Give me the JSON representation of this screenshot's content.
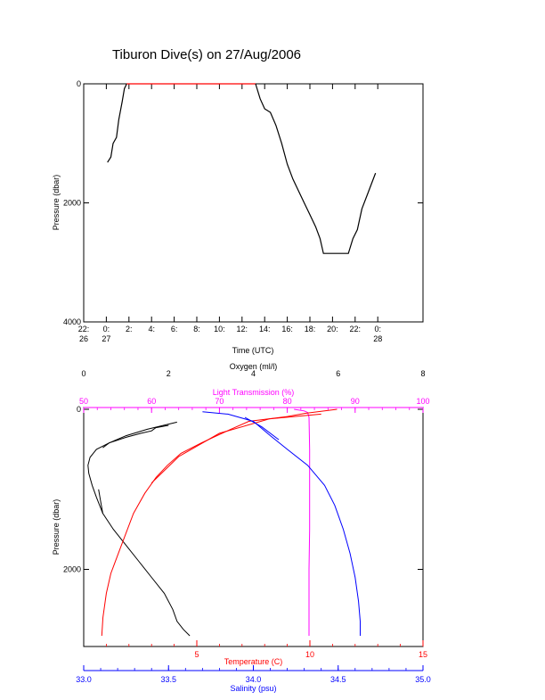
{
  "title": "Tiburon Dive(s) on 27/Aug/2006",
  "chart_data": [
    {
      "type": "line",
      "xlabel": "Time (UTC)",
      "ylabel": "Pressure (dbar)",
      "xlim": [
        -2,
        28
      ],
      "ylim": [
        4000,
        0
      ],
      "yticks": [
        0,
        2000,
        4000
      ],
      "xticks": [
        {
          "v": -2,
          "l1": "22:",
          "l2": "26"
        },
        {
          "v": 0,
          "l1": "0:",
          "l2": "27"
        },
        {
          "v": 2,
          "l1": "2:",
          "l2": ""
        },
        {
          "v": 4,
          "l1": "4:",
          "l2": ""
        },
        {
          "v": 6,
          "l1": "6:",
          "l2": ""
        },
        {
          "v": 8,
          "l1": "8:",
          "l2": ""
        },
        {
          "v": 10,
          "l1": "10:",
          "l2": ""
        },
        {
          "v": 12,
          "l1": "12:",
          "l2": ""
        },
        {
          "v": 14,
          "l1": "14:",
          "l2": ""
        },
        {
          "v": 16,
          "l1": "16:",
          "l2": ""
        },
        {
          "v": 18,
          "l1": "18:",
          "l2": ""
        },
        {
          "v": 20,
          "l1": "20:",
          "l2": ""
        },
        {
          "v": 22,
          "l1": "22:",
          "l2": ""
        },
        {
          "v": 24,
          "l1": "0:",
          "l2": "28"
        }
      ],
      "series": [
        {
          "color": "#000000",
          "points": [
            [
              0.1,
              1320
            ],
            [
              0.4,
              1230
            ],
            [
              0.6,
              1000
            ],
            [
              0.9,
              900
            ],
            [
              1.1,
              600
            ],
            [
              1.4,
              300
            ],
            [
              1.6,
              80
            ],
            [
              1.8,
              0
            ]
          ]
        },
        {
          "color": "#ff0000",
          "points": [
            [
              1.8,
              0
            ],
            [
              13.2,
              0
            ]
          ]
        },
        {
          "color": "#000000",
          "points": [
            [
              13.2,
              0
            ],
            [
              13.6,
              250
            ],
            [
              14.0,
              420
            ],
            [
              14.5,
              480
            ],
            [
              15.0,
              700
            ],
            [
              15.5,
              1000
            ],
            [
              16.0,
              1350
            ],
            [
              16.5,
              1600
            ],
            [
              17.0,
              1800
            ],
            [
              17.5,
              2000
            ],
            [
              18.0,
              2200
            ],
            [
              18.5,
              2400
            ],
            [
              18.9,
              2600
            ],
            [
              19.2,
              2850
            ],
            [
              21.0,
              2850
            ],
            [
              21.4,
              2850
            ],
            [
              21.8,
              2600
            ],
            [
              22.2,
              2450
            ],
            [
              22.6,
              2100
            ],
            [
              23.1,
              1850
            ],
            [
              23.4,
              1700
            ],
            [
              23.8,
              1500
            ]
          ]
        }
      ]
    },
    {
      "type": "line",
      "ylabel": "Pressure (dbar)",
      "ylim": [
        2900,
        0
      ],
      "yticks": [
        0,
        2000
      ],
      "axes": [
        {
          "key": "oxygen",
          "label": "Oxygen (ml/l)",
          "color": "#000000",
          "range": [
            0,
            8
          ],
          "ticks": [
            0,
            2,
            4,
            6,
            8
          ],
          "position": "top"
        },
        {
          "key": "transmission",
          "label": "Light Transmission (%)",
          "color": "#ff00ff",
          "range": [
            50,
            100
          ],
          "ticks": [
            50,
            60,
            70,
            80,
            90,
            100
          ],
          "position": "top"
        },
        {
          "key": "temperature",
          "label": "Temperature (C)",
          "color": "#ff0000",
          "range": [
            0,
            15
          ],
          "ticks": [
            5,
            10,
            15
          ],
          "position": "bottom"
        },
        {
          "key": "salinity",
          "label": "Salinity (psu)",
          "color": "#0000ff",
          "range": [
            33.0,
            35.0
          ],
          "ticks": [
            33.0,
            33.5,
            34.0,
            34.5,
            35.0
          ],
          "position": "bottom"
        }
      ],
      "series": [
        {
          "axis": "oxygen",
          "color": "#000000",
          "points": [
            [
              2.0,
              200
            ],
            [
              1.7,
              230
            ],
            [
              1.6,
              270
            ],
            [
              1.35,
              300
            ],
            [
              1.0,
              350
            ],
            [
              0.6,
              420
            ],
            [
              0.3,
              500
            ],
            [
              0.15,
              600
            ],
            [
              0.1,
              700
            ],
            [
              0.12,
              800
            ],
            [
              0.2,
              950
            ],
            [
              0.3,
              1100
            ],
            [
              0.45,
              1300
            ],
            [
              0.7,
              1500
            ],
            [
              1.0,
              1700
            ],
            [
              1.3,
              1900
            ],
            [
              1.6,
              2100
            ],
            [
              1.9,
              2300
            ],
            [
              2.1,
              2500
            ],
            [
              2.2,
              2650
            ],
            [
              2.35,
              2750
            ],
            [
              2.5,
              2830
            ]
          ]
        },
        {
          "axis": "oxygen",
          "color": "#000000",
          "points": [
            [
              2.2,
              160
            ],
            [
              1.5,
              250
            ],
            [
              1.0,
              330
            ],
            [
              0.6,
              420
            ],
            [
              0.45,
              480
            ]
          ]
        },
        {
          "axis": "oxygen",
          "color": "#000000",
          "points": [
            [
              0.35,
              1000
            ],
            [
              0.4,
              1150
            ],
            [
              0.45,
              1300
            ]
          ]
        },
        {
          "axis": "transmission",
          "color": "#ff00ff",
          "points": [
            [
              81,
              0
            ],
            [
              82.5,
              20
            ],
            [
              83,
              40
            ],
            [
              83.2,
              100
            ],
            [
              83.3,
              500
            ],
            [
              83.3,
              1000
            ],
            [
              83.3,
              1500
            ],
            [
              83.2,
              2000
            ],
            [
              83.2,
              2500
            ],
            [
              83.2,
              2830
            ]
          ]
        },
        {
          "axis": "temperature",
          "color": "#ff0000",
          "points": [
            [
              11.2,
              0
            ],
            [
              9.8,
              50
            ],
            [
              9.0,
              90
            ],
            [
              7.3,
              150
            ],
            [
              6.5,
              250
            ],
            [
              5.2,
              420
            ],
            [
              4.3,
              550
            ],
            [
              3.7,
              700
            ],
            [
              3.2,
              850
            ],
            [
              2.7,
              1050
            ],
            [
              2.2,
              1300
            ],
            [
              1.6,
              1750
            ],
            [
              1.2,
              2050
            ],
            [
              1.0,
              2300
            ],
            [
              0.85,
              2600
            ],
            [
              0.8,
              2830
            ]
          ]
        },
        {
          "axis": "temperature",
          "color": "#ff0000",
          "points": [
            [
              10.5,
              60
            ],
            [
              8.2,
              120
            ],
            [
              6.0,
              300
            ],
            [
              4.2,
              590
            ],
            [
              3.0,
              920
            ]
          ]
        },
        {
          "axis": "salinity",
          "color": "#0000ff",
          "points": [
            [
              33.7,
              30
            ],
            [
              33.85,
              60
            ],
            [
              34.0,
              150
            ],
            [
              34.1,
              330
            ],
            [
              34.2,
              500
            ],
            [
              34.32,
              700
            ],
            [
              34.42,
              950
            ],
            [
              34.48,
              1200
            ],
            [
              34.53,
              1500
            ],
            [
              34.57,
              1800
            ],
            [
              34.6,
              2100
            ],
            [
              34.62,
              2400
            ],
            [
              34.63,
              2650
            ],
            [
              34.63,
              2830
            ]
          ]
        },
        {
          "axis": "salinity",
          "color": "#0000ff",
          "points": [
            [
              33.95,
              100
            ],
            [
              34.05,
              220
            ],
            [
              34.15,
              380
            ]
          ]
        }
      ]
    }
  ]
}
